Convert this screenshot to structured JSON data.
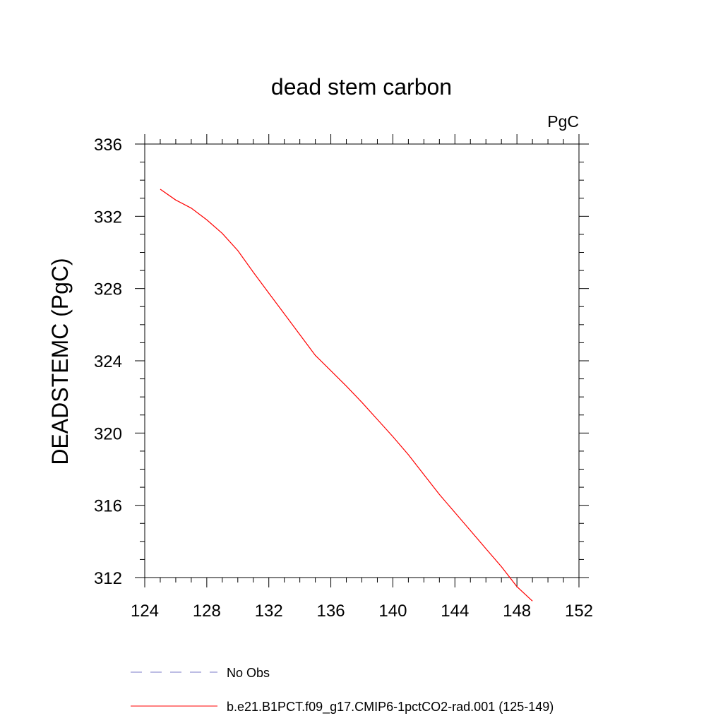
{
  "chart_data": {
    "type": "line",
    "title": "dead stem carbon",
    "units_label": "PgC",
    "xlabel": "",
    "ylabel": "DEADSTEMC  (PgC)",
    "xlim": [
      124,
      152
    ],
    "ylim": [
      312,
      336
    ],
    "x_ticks": [
      124,
      128,
      132,
      136,
      140,
      144,
      148,
      152
    ],
    "y_ticks": [
      312,
      316,
      320,
      324,
      328,
      332,
      336
    ],
    "grid": false,
    "legend_position": "bottom",
    "series": [
      {
        "name": "b.e21.B1PCT.f09_g17.CMIP6-1pctCO2-rad.001 (125-149)",
        "color": "#ff0000",
        "style": "solid",
        "x": [
          125,
          126,
          127,
          128,
          129,
          130,
          131,
          132,
          133,
          134,
          135,
          136,
          137,
          138,
          139,
          140,
          141,
          142,
          143,
          144,
          145,
          146,
          147,
          148,
          149
        ],
        "y": [
          333.5,
          332.9,
          332.45,
          331.8,
          331.05,
          330.1,
          328.9,
          327.75,
          326.6,
          325.45,
          324.3,
          323.45,
          322.6,
          321.7,
          320.75,
          319.8,
          318.8,
          317.7,
          316.6,
          315.6,
          314.6,
          313.6,
          312.6,
          311.5,
          310.7
        ]
      }
    ],
    "legend": [
      {
        "label": "No Obs",
        "color": "#7b7bc8",
        "style": "dashed"
      },
      {
        "label": "b.e21.B1PCT.f09_g17.CMIP6-1pctCO2-rad.001 (125-149)",
        "color": "#ff0000",
        "style": "solid"
      }
    ]
  }
}
